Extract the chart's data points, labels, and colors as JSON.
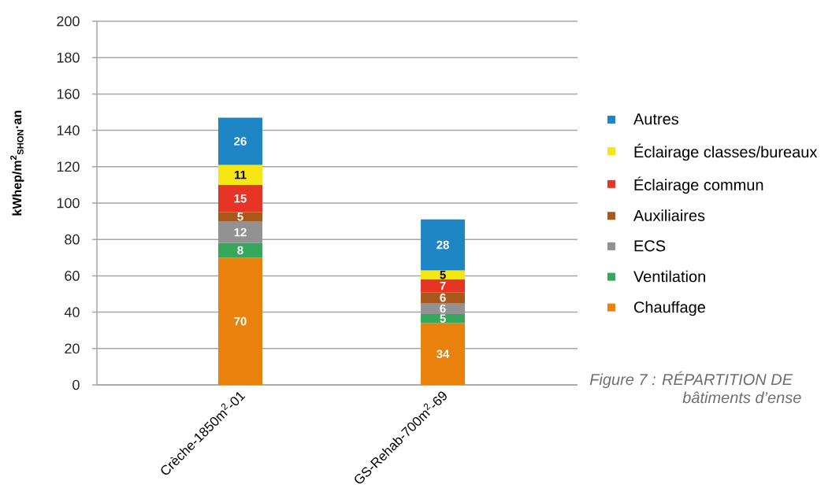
{
  "chart_data": {
    "type": "bar",
    "stacked": true,
    "categories": [
      "Crèche-1850m$^{2}$-01",
      "GS-Rehab-700m$^{2}$-69"
    ],
    "ylabel": "kWhep/m$^{2}$$_{SHON}$·an",
    "series": [
      {
        "name": "Chauffage",
        "color": "#e8820c",
        "values": [
          70,
          34
        ]
      },
      {
        "name": "Ventilation",
        "color": "#36a85c",
        "values": [
          8,
          5
        ]
      },
      {
        "name": "ECS",
        "color": "#929292",
        "values": [
          12,
          6
        ]
      },
      {
        "name": "Auxiliaires",
        "color": "#a9581c",
        "values": [
          5,
          6
        ]
      },
      {
        "name": "Éclairage commun",
        "color": "#e63525",
        "values": [
          15,
          7
        ]
      },
      {
        "name": "Éclairage classes/bureaux",
        "color": "#f5e614",
        "values": [
          11,
          5
        ]
      },
      {
        "name": "Autres",
        "color": "#1f86c6",
        "values": [
          26,
          28
        ]
      }
    ],
    "ylim": [
      0,
      200
    ],
    "yticks": [
      0,
      20,
      40,
      60,
      80,
      100,
      120,
      140,
      160,
      180,
      200
    ],
    "grid": "y",
    "legend": "right",
    "data_labels": true,
    "annotations": [
      "Figure 7 : RÉPARTITION DE",
      "bâtiments d’ense"
    ]
  }
}
